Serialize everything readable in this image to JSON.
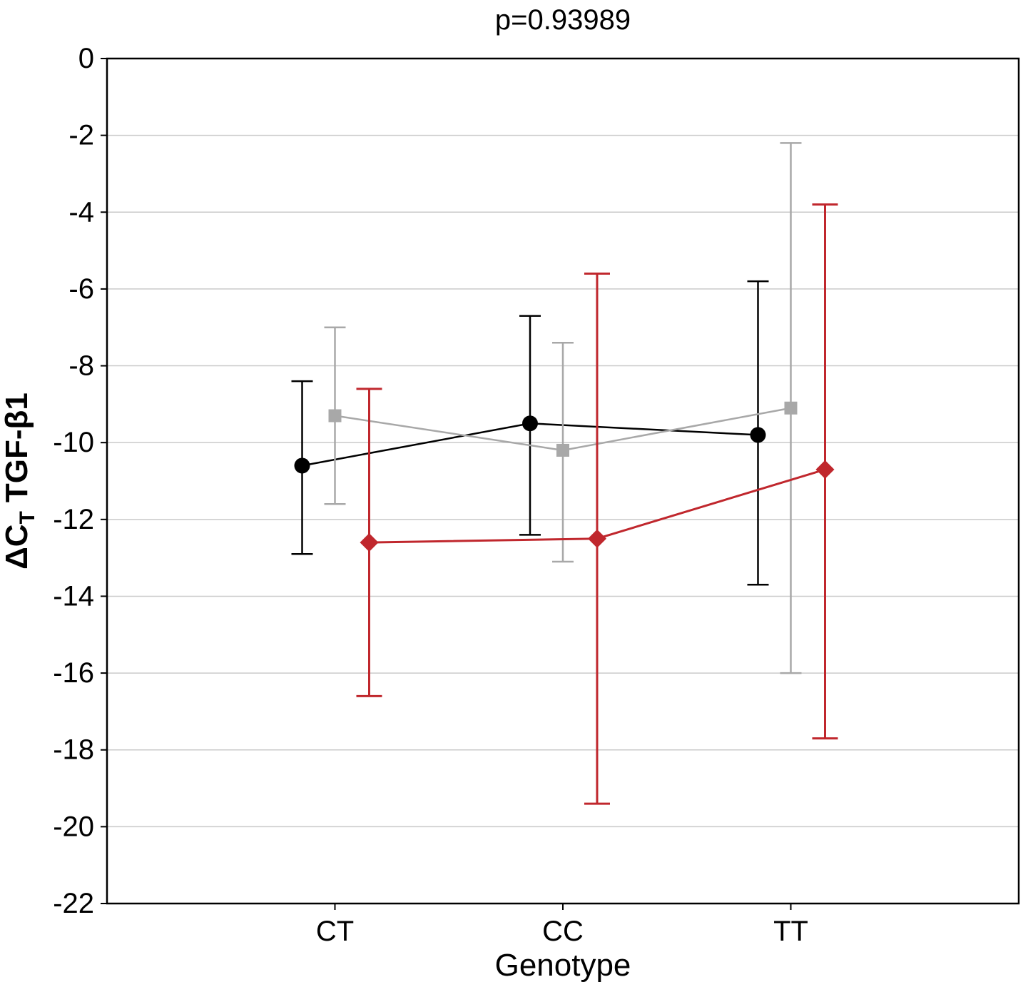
{
  "chart_data": {
    "type": "line",
    "subtype": "means-with-error-bars",
    "title": "p=0.93989",
    "xlabel": "Genotype",
    "ylabel": "ΔCT TGF-β1",
    "ylabel_parts": {
      "prefix": "ΔC",
      "sub": "T",
      "suffix": "TGF-β1"
    },
    "categories": [
      "CT",
      "CC",
      "TT"
    ],
    "ylim": [
      -22,
      0
    ],
    "yticks": [
      0,
      -2,
      -4,
      -6,
      -8,
      -10,
      -12,
      -14,
      -16,
      -18,
      -20,
      -22
    ],
    "grid": "horizontal",
    "legend": "none",
    "series": [
      {
        "name": "series-black",
        "marker": "circle",
        "color": "#000000",
        "means": [
          -10.6,
          -9.5,
          -9.8
        ],
        "upper": [
          -8.4,
          -6.7,
          -5.8
        ],
        "lower": [
          -12.9,
          -12.4,
          -13.7
        ]
      },
      {
        "name": "series-gray",
        "marker": "square",
        "color": "#a8a8a8",
        "means": [
          -9.3,
          -10.2,
          -9.1
        ],
        "upper": [
          -7.0,
          -7.4,
          -2.2
        ],
        "lower": [
          -11.6,
          -13.1,
          -16.0
        ]
      },
      {
        "name": "series-red",
        "marker": "diamond",
        "color": "#c0272d",
        "means": [
          -12.6,
          -12.5,
          -10.7
        ],
        "upper": [
          -8.6,
          -5.6,
          -3.8
        ],
        "lower": [
          -16.6,
          -19.4,
          -17.7
        ]
      }
    ]
  }
}
